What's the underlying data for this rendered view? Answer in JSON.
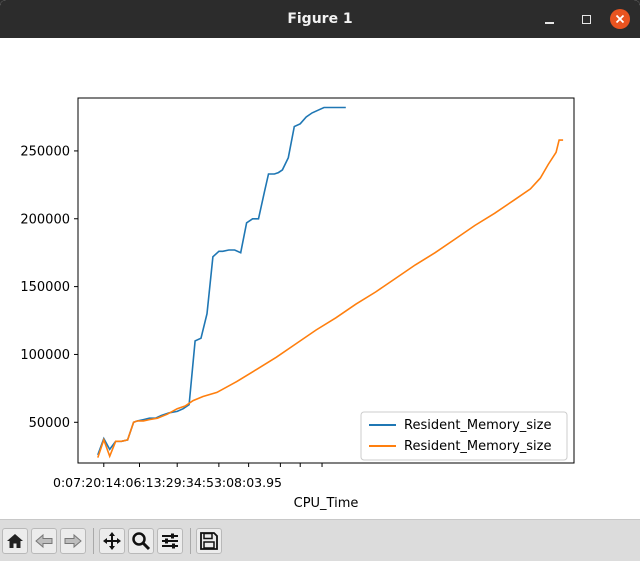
{
  "window": {
    "title": "Figure 1"
  },
  "toolbar": {
    "buttons": [
      {
        "icon": "home-icon",
        "tooltip": "Home"
      },
      {
        "icon": "back-arrow-icon",
        "tooltip": "Back"
      },
      {
        "icon": "forward-arrow-icon",
        "tooltip": "Forward"
      },
      {
        "icon": "pan-icon",
        "tooltip": "Pan"
      },
      {
        "icon": "zoom-icon",
        "tooltip": "Zoom"
      },
      {
        "icon": "subplots-config-icon",
        "tooltip": "Configure subplots"
      },
      {
        "icon": "save-icon",
        "tooltip": "Save"
      }
    ]
  },
  "chart_data": {
    "type": "line",
    "xlabel": "CPU_Time",
    "ylabel": "",
    "xlim": [
      0,
      25
    ],
    "ylim": [
      20000,
      289000
    ],
    "yticks": [
      50000,
      100000,
      150000,
      200000,
      250000
    ],
    "xtick_values": [
      1.3,
      3.1,
      5.0,
      7.1,
      8.6,
      10.2,
      11.2,
      12.3
    ],
    "xtick_text": "0:07:20:14:06:13:29:34:53:08:03.95",
    "legend": {
      "position": "lower-right"
    },
    "grid": false,
    "series": [
      {
        "name": "Resident_Memory_size",
        "color": "#1f77b4",
        "x": [
          1.0,
          1.3,
          1.6,
          1.9,
          2.2,
          2.5,
          2.8,
          3.0,
          3.3,
          3.6,
          3.9,
          4.2,
          4.6,
          5.0,
          5.3,
          5.6,
          5.9,
          6.2,
          6.5,
          6.8,
          7.1,
          7.3,
          7.6,
          7.9,
          8.2,
          8.5,
          8.8,
          9.1,
          9.4,
          9.6,
          9.9,
          10.1,
          10.3,
          10.6,
          10.9,
          11.2,
          11.5,
          11.8,
          12.1,
          12.4,
          12.7,
          13.1,
          13.5
        ],
        "y": [
          26000,
          38000,
          30000,
          36000,
          36000,
          37000,
          50000,
          51000,
          52000,
          53000,
          53000,
          55000,
          57000,
          58000,
          60000,
          63000,
          110000,
          112000,
          130000,
          172000,
          176000,
          176000,
          177000,
          177000,
          175000,
          197000,
          200000,
          200000,
          220000,
          233000,
          233000,
          234000,
          236000,
          245000,
          268000,
          270000,
          275000,
          278000,
          280000,
          282000,
          282000,
          282000,
          282000
        ]
      },
      {
        "name": "Resident_Memory_size",
        "color": "#ff7f0e",
        "x": [
          1.0,
          1.3,
          1.6,
          1.9,
          2.2,
          2.5,
          2.8,
          3.0,
          3.3,
          3.6,
          4.0,
          4.5,
          5.0,
          5.4,
          5.8,
          6.3,
          7.0,
          8.0,
          9.0,
          10.0,
          11.0,
          12.0,
          13.0,
          14.0,
          15.0,
          16.0,
          17.0,
          18.0,
          19.0,
          20.0,
          21.0,
          22.0,
          22.8,
          23.3,
          23.7,
          24.1,
          24.25
        ],
        "y": [
          24000,
          37000,
          25000,
          36000,
          36000,
          37000,
          50000,
          51000,
          51000,
          52000,
          53000,
          56000,
          60000,
          62000,
          66000,
          69000,
          72000,
          80000,
          89000,
          98000,
          108000,
          118000,
          127000,
          137000,
          146000,
          156000,
          166000,
          175000,
          185000,
          195000,
          204000,
          214000,
          222000,
          230000,
          240000,
          249000,
          258000
        ]
      }
    ]
  }
}
